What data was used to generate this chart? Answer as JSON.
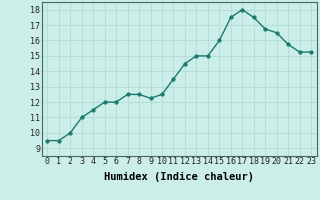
{
  "x": [
    0,
    1,
    2,
    3,
    4,
    5,
    6,
    7,
    8,
    9,
    10,
    11,
    12,
    13,
    14,
    15,
    16,
    17,
    18,
    19,
    20,
    21,
    22,
    23
  ],
  "y": [
    9.5,
    9.5,
    10.0,
    11.0,
    11.5,
    12.0,
    12.0,
    12.5,
    12.5,
    12.25,
    12.5,
    13.5,
    14.5,
    15.0,
    15.0,
    16.0,
    17.5,
    18.0,
    17.5,
    16.75,
    16.5,
    15.75,
    15.25,
    15.25
  ],
  "line_color": "#1a7a6e",
  "marker_color": "#1a7a6e",
  "bg_color": "#cceee8",
  "grid_color": "#b0ddd6",
  "xlabel": "Humidex (Indice chaleur)",
  "ylim": [
    8.5,
    18.5
  ],
  "xlim": [
    -0.5,
    23.5
  ],
  "yticks": [
    9,
    10,
    11,
    12,
    13,
    14,
    15,
    16,
    17,
    18
  ],
  "xticks": [
    0,
    1,
    2,
    3,
    4,
    5,
    6,
    7,
    8,
    9,
    10,
    11,
    12,
    13,
    14,
    15,
    16,
    17,
    18,
    19,
    20,
    21,
    22,
    23
  ],
  "tick_fontsize": 6,
  "xlabel_fontsize": 7.5,
  "linewidth": 1.0,
  "markersize": 2.5
}
